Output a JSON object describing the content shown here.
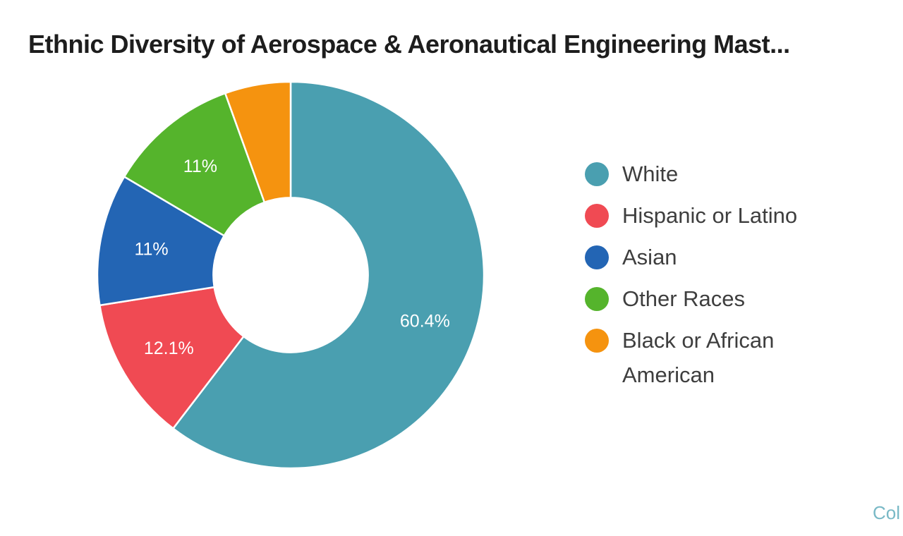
{
  "title": "Ethnic Diversity of Aerospace & Aeronautical Engineering Mast...",
  "chart_data": {
    "type": "pie",
    "subtype": "donut",
    "title": "Ethnic Diversity of Aerospace & Aeronautical Engineering Mast...",
    "categories": [
      "White",
      "Hispanic or Latino",
      "Asian",
      "Other Races",
      "Black or African American"
    ],
    "values": [
      60.4,
      12.1,
      11,
      11,
      5.5
    ],
    "data_labels": [
      "60.4%",
      "12.1%",
      "11%",
      "11%",
      ""
    ],
    "colors": [
      "#4A9FB0",
      "#F04A53",
      "#2365B4",
      "#55B42C",
      "#F5930F"
    ],
    "start_angle_deg": 0,
    "direction": "clockwise",
    "inner_radius_ratio": 0.4,
    "legend_position": "right",
    "legend_text_color": "#3E3E3E",
    "data_label_color": "#FFFFFF",
    "slice_border_color": "#FFFFFF"
  },
  "footer": {
    "watermark_text": "Col",
    "watermark_color": "#79B9C6"
  }
}
